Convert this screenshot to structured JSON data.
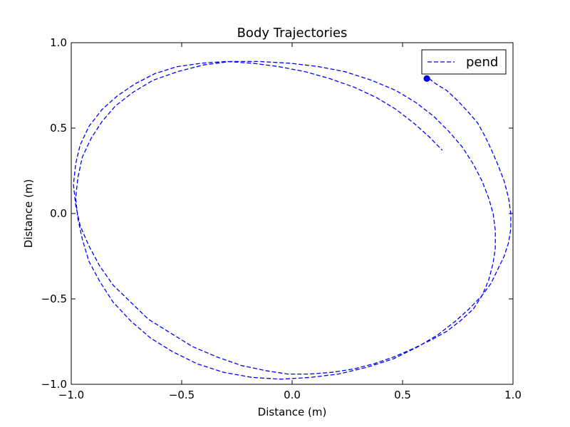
{
  "chart_data": {
    "type": "line",
    "title": "Body Trajectories",
    "xlabel": "Distance (m)",
    "ylabel": "Distance (m)",
    "xlim": [
      -1.0,
      1.0
    ],
    "ylim": [
      -1.0,
      1.0
    ],
    "x_ticks": [
      "−1.0",
      "−0.5",
      "0.0",
      "0.5",
      "1.0"
    ],
    "y_ticks": [
      "−1.0",
      "−0.5",
      "0.0",
      "0.5",
      "1.0"
    ],
    "grid": false,
    "legend": {
      "position": "top-right"
    },
    "series": [
      {
        "name": "pend",
        "style": "dashed",
        "color": "#0000ff",
        "x": [
          0.62,
          0.65,
          0.7,
          0.75,
          0.8,
          0.84,
          0.87,
          0.9,
          0.93,
          0.96,
          0.98,
          0.99,
          0.99,
          0.98,
          0.96,
          0.93,
          0.9,
          0.86,
          0.8,
          0.74,
          0.66,
          0.57,
          0.46,
          0.34,
          0.21,
          0.08,
          -0.05,
          -0.18,
          -0.31,
          -0.43,
          -0.54,
          -0.64,
          -0.73,
          -0.81,
          -0.87,
          -0.92,
          -0.95,
          -0.97,
          -0.98,
          -0.97,
          -0.95,
          -0.91,
          -0.86,
          -0.8,
          -0.72,
          -0.63,
          -0.52,
          -0.4,
          -0.28,
          -0.15,
          -0.01,
          0.12,
          0.24,
          0.36,
          0.47,
          0.56,
          0.64,
          0.71,
          0.77,
          0.82,
          0.86,
          0.89,
          0.91,
          0.92,
          0.92,
          0.91,
          0.89,
          0.86,
          0.82,
          0.76,
          0.7,
          0.63,
          0.55,
          0.46,
          0.37,
          0.28,
          0.18,
          0.08,
          -0.02,
          -0.12,
          -0.23,
          -0.34,
          -0.45,
          -0.55,
          -0.65,
          -0.73,
          -0.81,
          -0.87,
          -0.92,
          -0.96,
          -0.98,
          -0.99,
          -0.98,
          -0.96,
          -0.92,
          -0.86,
          -0.79,
          -0.71,
          -0.62,
          -0.52,
          -0.41,
          -0.3,
          -0.18,
          -0.06,
          0.06,
          0.17,
          0.28,
          0.38,
          0.47,
          0.55,
          0.62,
          0.68
        ],
        "y": [
          0.79,
          0.76,
          0.72,
          0.66,
          0.59,
          0.53,
          0.46,
          0.38,
          0.29,
          0.19,
          0.09,
          0.0,
          -0.09,
          -0.17,
          -0.25,
          -0.33,
          -0.41,
          -0.48,
          -0.56,
          -0.63,
          -0.71,
          -0.78,
          -0.85,
          -0.9,
          -0.94,
          -0.96,
          -0.97,
          -0.96,
          -0.93,
          -0.88,
          -0.81,
          -0.73,
          -0.63,
          -0.52,
          -0.4,
          -0.28,
          -0.15,
          -0.03,
          0.09,
          0.21,
          0.33,
          0.44,
          0.54,
          0.63,
          0.71,
          0.78,
          0.83,
          0.87,
          0.89,
          0.89,
          0.88,
          0.86,
          0.83,
          0.78,
          0.72,
          0.65,
          0.57,
          0.48,
          0.39,
          0.29,
          0.19,
          0.09,
          0.0,
          -0.1,
          -0.2,
          -0.29,
          -0.39,
          -0.48,
          -0.56,
          -0.63,
          -0.69,
          -0.74,
          -0.79,
          -0.84,
          -0.88,
          -0.91,
          -0.93,
          -0.94,
          -0.94,
          -0.92,
          -0.89,
          -0.84,
          -0.78,
          -0.7,
          -0.62,
          -0.52,
          -0.42,
          -0.31,
          -0.19,
          -0.07,
          0.05,
          0.17,
          0.29,
          0.4,
          0.51,
          0.61,
          0.69,
          0.76,
          0.82,
          0.86,
          0.88,
          0.89,
          0.88,
          0.86,
          0.83,
          0.79,
          0.74,
          0.68,
          0.61,
          0.53,
          0.45,
          0.37
        ],
        "end_marker": {
          "x": 0.61,
          "y": 0.79
        }
      }
    ]
  }
}
